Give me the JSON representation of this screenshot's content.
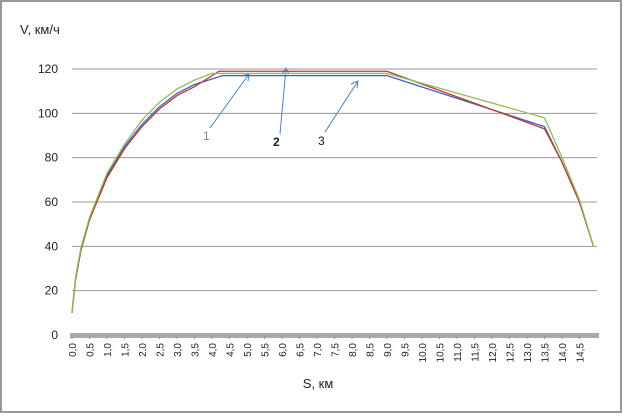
{
  "chart_data": {
    "type": "line",
    "x_label": "S, км",
    "y_label": "V, км/ч",
    "xlim": [
      0,
      15
    ],
    "ylim": [
      0,
      120
    ],
    "yticks": [
      0,
      20,
      40,
      60,
      80,
      100,
      120
    ],
    "xticks": [
      {
        "value": 0,
        "label": "0,0"
      },
      {
        "value": 0.5,
        "label": "0,5"
      },
      {
        "value": 1,
        "label": "1,0"
      },
      {
        "value": 1.5,
        "label": "1,5"
      },
      {
        "value": 2,
        "label": "2,0"
      },
      {
        "value": 2.5,
        "label": "2,5"
      },
      {
        "value": 3,
        "label": "3,0"
      },
      {
        "value": 3.5,
        "label": "3,5"
      },
      {
        "value": 4,
        "label": "4,0"
      },
      {
        "value": 4.5,
        "label": "4,5"
      },
      {
        "value": 5,
        "label": "5,0"
      },
      {
        "value": 5.5,
        "label": "5,5"
      },
      {
        "value": 6,
        "label": "6,0"
      },
      {
        "value": 6.5,
        "label": "6,5"
      },
      {
        "value": 7,
        "label": "7,0"
      },
      {
        "value": 7.5,
        "label": "7,5"
      },
      {
        "value": 8,
        "label": "8,0"
      },
      {
        "value": 8.5,
        "label": "8,5"
      },
      {
        "value": 9,
        "label": "9,0"
      },
      {
        "value": 9.5,
        "label": "9,5"
      },
      {
        "value": 10,
        "label": "10,0"
      },
      {
        "value": 10.5,
        "label": "10,5"
      },
      {
        "value": 11,
        "label": "11,0"
      },
      {
        "value": 11.5,
        "label": "11,5"
      },
      {
        "value": 12,
        "label": "12,0"
      },
      {
        "value": 12.5,
        "label": "12,5"
      },
      {
        "value": 13,
        "label": "13,0"
      },
      {
        "value": 13.5,
        "label": "13,5"
      },
      {
        "value": 14,
        "label": "14,0"
      },
      {
        "value": 14.5,
        "label": "14,5"
      }
    ],
    "grid": true,
    "series": [
      {
        "color": "#3a5fcd",
        "x": [
          0,
          0.1,
          0.25,
          0.5,
          1,
          1.5,
          2,
          2.5,
          3,
          3.5,
          4.3,
          9,
          13.5,
          14,
          14.5,
          14.9
        ],
        "values": [
          10,
          25,
          38,
          52,
          72,
          85,
          95,
          103,
          109,
          113,
          117,
          117,
          94,
          78,
          60,
          40
        ]
      },
      {
        "color": "#c0392b",
        "x": [
          0,
          0.1,
          0.25,
          0.5,
          1,
          1.5,
          2,
          2.5,
          3,
          3.5,
          4.2,
          9,
          13.5,
          14,
          14.5,
          14.9
        ],
        "values": [
          10,
          25,
          38,
          52,
          71,
          84,
          94,
          102,
          108,
          112,
          119,
          119,
          93,
          78,
          60,
          40
        ]
      },
      {
        "color": "#8fbc5a",
        "x": [
          0,
          0.1,
          0.25,
          0.5,
          1,
          1.5,
          2,
          2.5,
          3,
          3.5,
          4,
          9,
          13.5,
          14,
          14.5,
          14.9
        ],
        "values": [
          10,
          26,
          39,
          53,
          73,
          86,
          97,
          105,
          111,
          115,
          118,
          118,
          98,
          80,
          61,
          40
        ]
      }
    ],
    "annotations": [
      "1",
      "2",
      "3"
    ]
  }
}
